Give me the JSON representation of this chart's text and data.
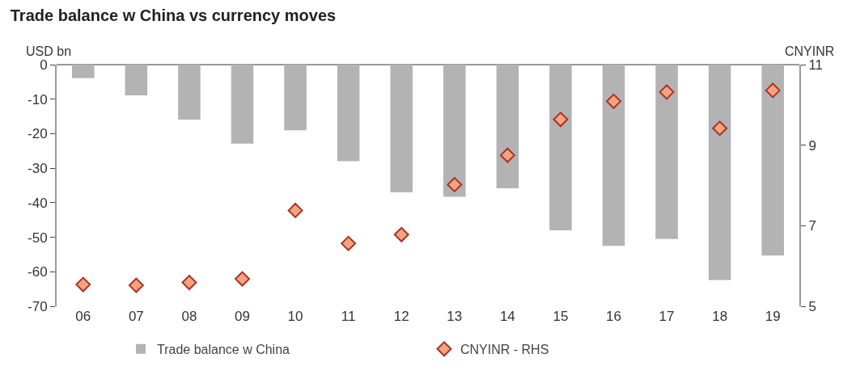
{
  "chart_data": {
    "type": "bar",
    "title": "Trade balance w China vs currency moves",
    "ylabel": "USD bn",
    "y2label": "CNYINR",
    "categories": [
      "06",
      "07",
      "08",
      "09",
      "10",
      "11",
      "12",
      "13",
      "14",
      "15",
      "16",
      "17",
      "18",
      "19"
    ],
    "series": [
      {
        "name": "Trade balance w China",
        "color": "#b3b3b3",
        "values": [
          -3.9,
          -8.9,
          -15.9,
          -22.9,
          -19,
          -28,
          -37,
          -38.3,
          -35.8,
          -48,
          -52.5,
          -50.5,
          -62.4,
          -55.3
        ]
      },
      {
        "name": "CNYINR - RHS",
        "type": "scatter",
        "axis": "y2",
        "color": "#f7a27e",
        "marker": "diamond",
        "values": [
          5.54,
          5.52,
          5.59,
          5.68,
          7.38,
          6.56,
          6.78,
          8.02,
          8.75,
          9.64,
          10.09,
          10.32,
          9.42,
          10.36
        ]
      }
    ],
    "ylim": [
      -70,
      0
    ],
    "yticks": [
      -70,
      -60,
      -50,
      -40,
      -30,
      -20,
      -10,
      0
    ],
    "y2lim": [
      5,
      11
    ],
    "y2ticks": [
      5,
      7,
      9,
      11
    ],
    "legend": "bottom"
  }
}
